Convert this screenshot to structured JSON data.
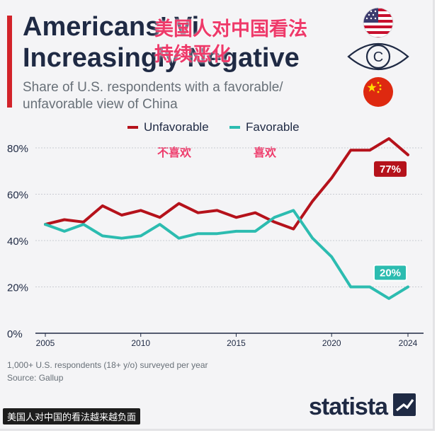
{
  "header": {
    "title_line1": "Americans' Vi",
    "title_line2": "Increasingly Negative",
    "overlay_line1": "美国人对中国看法",
    "overlay_line2": "持续恶化",
    "subtitle_line1": "Share of U.S. respondents with a favorable/",
    "subtitle_line2": "unfavorable view of China"
  },
  "legend": {
    "unfavorable": "Unfavorable",
    "favorable": "Favorable",
    "unfavorable_cn": "不喜欢",
    "favorable_cn": "喜欢"
  },
  "chart_data": {
    "type": "line",
    "x": [
      2005,
      2006,
      2007,
      2008,
      2009,
      2010,
      2011,
      2012,
      2013,
      2014,
      2015,
      2016,
      2017,
      2018,
      2019,
      2020,
      2021,
      2022,
      2023,
      2024
    ],
    "series": [
      {
        "name": "Unfavorable",
        "color": "#b5121b",
        "values": [
          47,
          49,
          48,
          55,
          51,
          53,
          50,
          56,
          52,
          53,
          50,
          52,
          48,
          45,
          57,
          67,
          79,
          79,
          84,
          77
        ]
      },
      {
        "name": "Favorable",
        "color": "#2cbcb0",
        "values": [
          47,
          44,
          47,
          42,
          41,
          42,
          47,
          41,
          43,
          43,
          44,
          44,
          50,
          53,
          41,
          33,
          20,
          20,
          15,
          20
        ]
      }
    ],
    "end_labels": {
      "Unfavorable": "77%",
      "Favorable": "20%"
    },
    "yticks": [
      0,
      20,
      40,
      60,
      80
    ],
    "ytick_labels": [
      "0%",
      "20%",
      "40%",
      "60%",
      "80%"
    ],
    "xticks": [
      2005,
      2010,
      2015,
      2020,
      2024
    ],
    "xtick_labels": [
      "2005",
      "2010",
      "2015",
      "2020",
      "2024"
    ],
    "ylim": [
      0,
      80
    ],
    "xlim": [
      2005,
      2024
    ],
    "grid": true
  },
  "footer": {
    "note": "1,000+ U.S. respondents (18+ y/o) surveyed per year",
    "source": "Source: Gallup",
    "caption": "美国人对中国的看法越来越负面",
    "brand": "statista"
  },
  "icons": [
    "us-flag-icon",
    "eye-copyright-icon",
    "china-flag-icon",
    "statista-logo-icon"
  ],
  "colors": {
    "accent": "#d2232a",
    "unfavorable": "#b5121b",
    "favorable": "#2cbcb0",
    "title": "#1f2a44"
  }
}
